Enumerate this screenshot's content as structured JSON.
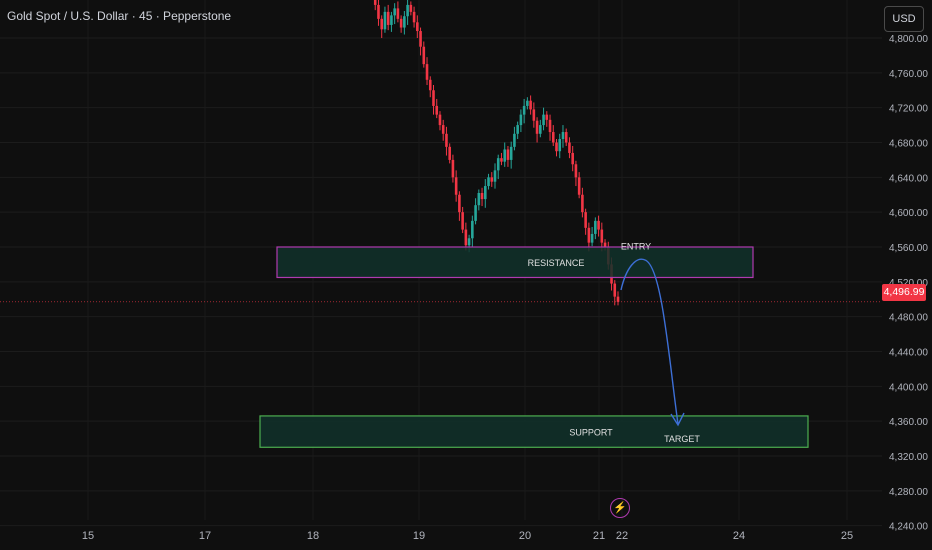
{
  "header": {
    "title": "Gold Spot / U.S. Dollar · 45 · Pepperstone"
  },
  "currency_button": {
    "label": "USD"
  },
  "last_price": {
    "label": "4,496.99",
    "value": 4496.99
  },
  "event_icon": "lightning-icon",
  "colors": {
    "up": "#26a69a",
    "down": "#f23645",
    "zone_border_resistance": "#b03ab0",
    "zone_border_support": "#4caf50",
    "zone_fill": "#10312a",
    "arrow": "#3d6fd6"
  },
  "chart_data": {
    "type": "candlestick",
    "title": "Gold Spot / U.S. Dollar · 45 · Pepperstone",
    "x_ticks": [
      "15",
      "17",
      "18",
      "19",
      "20",
      "21",
      "22",
      "24",
      "25"
    ],
    "y_ticks": [
      "4,800.00",
      "4,760.00",
      "4,720.00",
      "4,680.00",
      "4,640.00",
      "4,600.00",
      "4,560.00",
      "4,520.00",
      "4,480.00",
      "4,440.00",
      "4,400.00",
      "4,360.00",
      "4,320.00",
      "4,280.00",
      "4,240.00"
    ],
    "y_values": [
      4800,
      4760,
      4720,
      4680,
      4640,
      4600,
      4560,
      4520,
      4480,
      4440,
      4400,
      4360,
      4320,
      4280,
      4240
    ],
    "zones": [
      {
        "label": "RESISTANCE",
        "low": 4525,
        "high": 4560
      },
      {
        "label": "SUPPORT",
        "low": 4330,
        "high": 4366
      }
    ],
    "annotations": [
      {
        "label": "ENTRY",
        "price": 4562
      },
      {
        "label": "TARGET",
        "price": 4320
      }
    ],
    "close_series": [
      4845,
      4838,
      4822,
      4810,
      4830,
      4815,
      4826,
      4834,
      4822,
      4812,
      4825,
      4838,
      4830,
      4818,
      4808,
      4790,
      4770,
      4752,
      4740,
      4722,
      4712,
      4700,
      4690,
      4675,
      4660,
      4640,
      4620,
      4600,
      4580,
      4562,
      4570,
      4590,
      4608,
      4622,
      4615,
      4630,
      4640,
      4635,
      4648,
      4662,
      4658,
      4672,
      4660,
      4675,
      4690,
      4700,
      4712,
      4722,
      4728,
      4718,
      4705,
      4690,
      4700,
      4712,
      4706,
      4692,
      4680,
      4670,
      4684,
      4692,
      4680,
      4668,
      4655,
      4640,
      4620,
      4600,
      4582,
      4565,
      4575,
      4590,
      4580,
      4565,
      4560,
      4540,
      4518,
      4503,
      4496.99
    ]
  }
}
